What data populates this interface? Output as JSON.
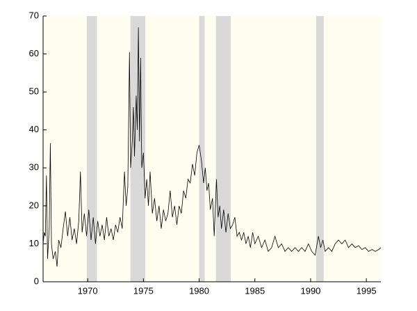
{
  "chart_data": {
    "type": "line",
    "x": [
      1966.0,
      1966.1,
      1966.2,
      1966.3,
      1966.4,
      1966.55,
      1966.65,
      1966.75,
      1966.9,
      1967.1,
      1967.25,
      1967.4,
      1967.6,
      1967.8,
      1968.0,
      1968.2,
      1968.4,
      1968.6,
      1968.8,
      1969.0,
      1969.2,
      1969.35,
      1969.5,
      1969.7,
      1969.9,
      1970.1,
      1970.3,
      1970.5,
      1970.7,
      1970.9,
      1971.1,
      1971.3,
      1971.5,
      1971.7,
      1971.9,
      1972.1,
      1972.3,
      1972.5,
      1972.7,
      1972.9,
      1973.1,
      1973.3,
      1973.45,
      1973.6,
      1973.75,
      1973.85,
      1974.0,
      1974.1,
      1974.2,
      1974.35,
      1974.45,
      1974.55,
      1974.65,
      1974.75,
      1974.85,
      1975.0,
      1975.15,
      1975.3,
      1975.45,
      1975.6,
      1975.8,
      1976.0,
      1976.2,
      1976.4,
      1976.6,
      1976.8,
      1977.0,
      1977.2,
      1977.4,
      1977.6,
      1977.8,
      1978.0,
      1978.2,
      1978.4,
      1978.6,
      1978.8,
      1979.0,
      1979.2,
      1979.4,
      1979.6,
      1979.8,
      1980.0,
      1980.2,
      1980.4,
      1980.55,
      1980.7,
      1980.85,
      1981.0,
      1981.2,
      1981.35,
      1981.55,
      1981.7,
      1981.85,
      1982.0,
      1982.2,
      1982.4,
      1982.6,
      1982.8,
      1983.0,
      1983.2,
      1983.4,
      1983.6,
      1983.8,
      1984.0,
      1984.2,
      1984.4,
      1984.6,
      1984.8,
      1985.0,
      1985.3,
      1985.6,
      1985.9,
      1986.2,
      1986.5,
      1986.8,
      1987.1,
      1987.4,
      1987.7,
      1988.0,
      1988.3,
      1988.6,
      1988.9,
      1989.2,
      1989.5,
      1989.8,
      1990.1,
      1990.4,
      1990.7,
      1990.9,
      1991.1,
      1991.3,
      1991.6,
      1991.9,
      1992.2,
      1992.5,
      1992.8,
      1993.1,
      1993.4,
      1993.7,
      1994.0,
      1994.3,
      1994.6,
      1994.9,
      1995.2,
      1995.5,
      1995.8,
      1996.1,
      1996.3
    ],
    "series": [
      {
        "color": "#000000",
        "values": [
          10,
          13,
          12,
          28,
          6,
          14,
          36.5,
          10,
          6,
          8,
          4,
          11,
          9,
          14,
          18.5,
          12,
          17,
          11,
          14,
          10,
          16,
          29,
          13,
          18,
          12,
          19,
          11,
          17,
          10,
          16,
          12,
          15,
          11,
          17,
          12,
          14,
          11,
          15,
          13,
          17,
          14,
          29,
          20,
          25,
          60.5,
          30,
          37,
          46,
          33,
          49,
          40,
          67,
          37,
          59,
          30,
          34,
          22,
          27,
          20,
          29,
          18,
          22,
          16,
          20,
          14,
          19,
          16,
          18,
          24,
          17,
          20,
          15,
          20,
          18,
          24,
          22,
          27,
          26,
          31,
          28,
          34,
          36,
          32,
          26,
          30,
          24,
          26,
          19,
          22,
          12,
          27,
          17,
          20,
          14,
          19,
          13,
          18,
          14,
          15,
          17,
          12,
          13,
          11,
          13,
          10,
          12,
          9,
          13,
          10,
          12,
          9,
          11,
          8,
          9,
          12,
          9,
          10,
          8,
          9,
          8,
          9,
          8,
          9,
          8,
          10,
          8,
          7,
          12,
          9,
          11,
          8,
          9,
          8,
          10,
          11,
          10,
          11,
          9,
          10,
          9,
          9.5,
          8.5,
          9,
          8,
          8.5,
          8,
          8.5,
          9
        ]
      }
    ],
    "shaded_periods": [
      [
        1969.92,
        1970.83
      ],
      [
        1973.83,
        1975.17
      ],
      [
        1980.0,
        1980.5
      ],
      [
        1981.5,
        1982.83
      ],
      [
        1990.5,
        1991.17
      ]
    ],
    "shade_color": "#d9d9d9",
    "background": "#fffdf0",
    "xlim": [
      1966.0,
      1996.3
    ],
    "xticks": [
      1970,
      1975,
      1980,
      1985,
      1990,
      1995
    ],
    "ylim": [
      0,
      70
    ],
    "yticks": [
      0,
      10,
      20,
      30,
      40,
      50,
      60,
      70
    ]
  }
}
